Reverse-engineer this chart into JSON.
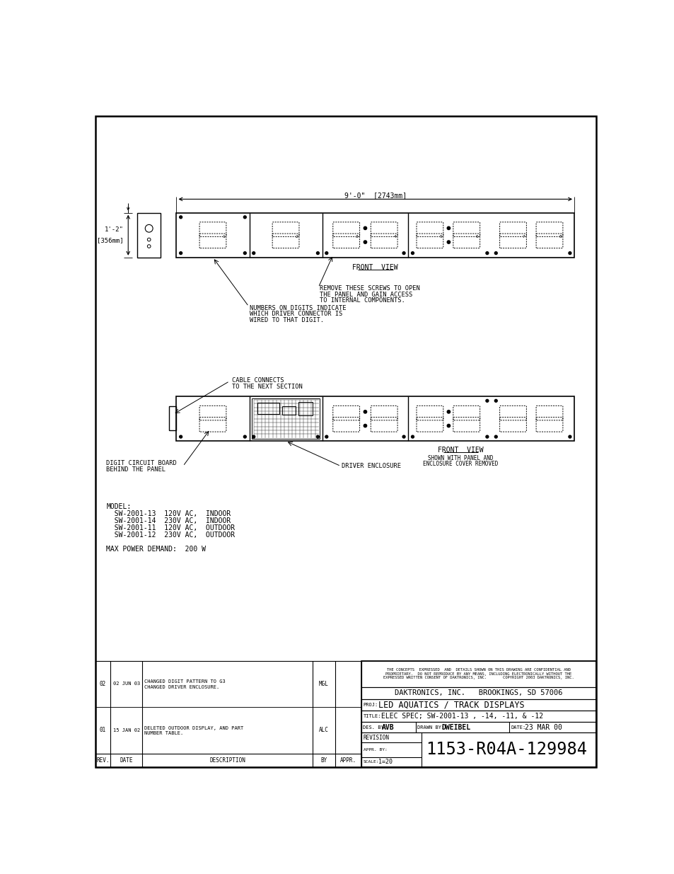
{
  "bg_color": "#ffffff",
  "confidential_text": "THE CONCEPTS  EXPRESSED  AND  DETAILS SHOWN ON THIS DRAWING ARE CONFIDENTIAL AND\nPROPRIETARY.  DO NOT REPRODUCE BY ANY MEANS, INCLUDING ELECTRONICALLY WITHOUT THE\nEXPRESSED WRITTEN CONSENT OF DAKTRONICS, INC.       COPYRIGHT 2003 DAKTRONICS, INC.",
  "company_text": "DAKTRONICS, INC.   BROOKINGS, SD 57006",
  "proj_label": "PROJ:",
  "proj_text": "LED AQUATICS / TRACK DISPLAYS",
  "title_label": "TITLE:",
  "title_text": "ELEC SPEC; SW-2001-13 , -14, -11, & -12",
  "des_label": "DES. BY:",
  "des_text": "AVB",
  "drawn_label": "DRAWN BY:",
  "drawn_text": "DWEIBEL",
  "date_label": "DATE:",
  "date_text": "23 MAR 00",
  "drawing_num": "1153-R04A-129984",
  "revision_label": "REVISION",
  "appr_label": "APPR. BY:",
  "scale_label": "SCALE:",
  "scale_text": "1=20",
  "revision_rows": [
    {
      "rev": "02",
      "date": "02 JUN 03",
      "desc1": "CHANGED DIGIT PATTERN TO G3",
      "desc2": "CHANGED DRIVER ENCLOSURE.",
      "by": "MGL"
    },
    {
      "rev": "01",
      "date": "15 JAN 02",
      "desc1": "DELETED OUTDOOR DISPLAY, AND PART",
      "desc2": "NUMBER TABLE.",
      "by": "ALC"
    }
  ],
  "model_lines": [
    "MODEL:",
    "  SW-2001-13  120V AC,  INDOOR",
    "  SW-2001-14  230V AC,  INDOOR",
    "  SW-2001-11  120V AC,  OUTDOOR",
    "  SW-2001-12  230V AC,  OUTDOOR",
    "",
    "MAX POWER DEMAND:  200 W"
  ],
  "dim_label": "9'-0\"  [2743mm]",
  "height_label1": "1'-2\"",
  "height_label2": "[356mm]",
  "front_view1": "FRONT  VIEW",
  "front_view2": "FRONT  VIEW",
  "front_view2_sub1": "SHOWN WITH PANEL AND",
  "front_view2_sub2": "ENCLOSURE COVER REMOVED",
  "ann_screws1": "REMOVE THESE SCREWS TO OPEN",
  "ann_screws2": "THE PANEL AND GAIN ACCESS",
  "ann_screws3": "TO INTERNAL COMPONENTS.",
  "ann_digits1": "NUMBERS ON DIGITS INDICATE",
  "ann_digits2": "WHICH DRIVER CONNECTOR IS",
  "ann_digits3": "WIRED TO THAT DIGIT.",
  "ann_cable1": "CABLE CONNECTS",
  "ann_cable2": "TO THE NEXT SECTION",
  "ann_dcb1": "DIGIT CIRCUIT BOARD",
  "ann_dcb2": "BEHIND THE PANEL",
  "ann_drv": "DRIVER ENCLOSURE"
}
